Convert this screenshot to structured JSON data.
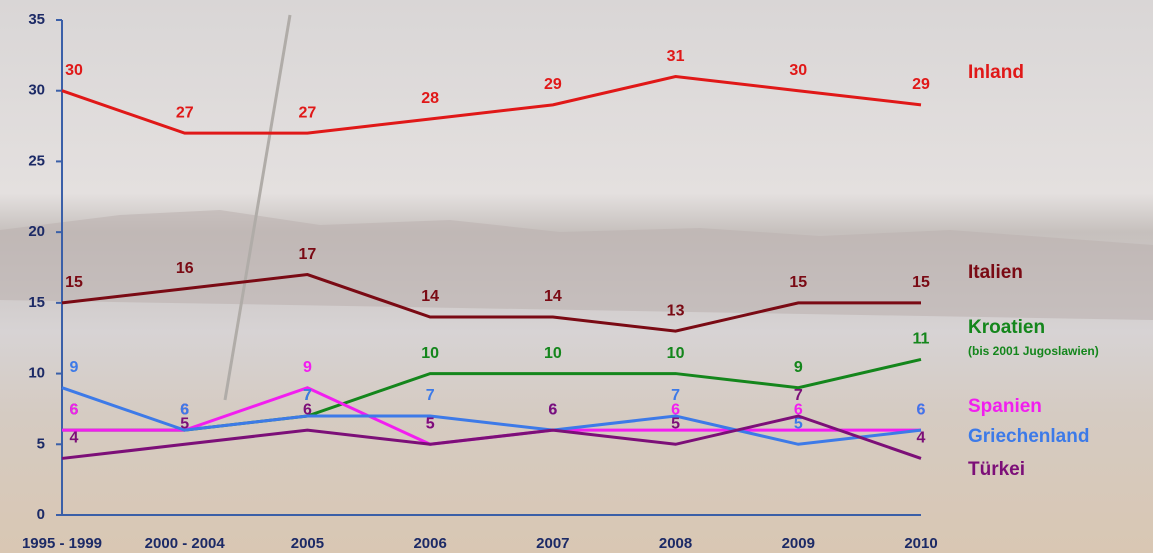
{
  "chart_data": {
    "type": "line",
    "categories": [
      "1995 - 1999",
      "2000 - 2004",
      "2005",
      "2006",
      "2007",
      "2008",
      "2009",
      "2010"
    ],
    "ylim": [
      0,
      35
    ],
    "yticks": [
      0,
      5,
      10,
      15,
      20,
      25,
      30,
      35
    ],
    "series": [
      {
        "name": "Inland",
        "color": "#e01818",
        "values": [
          30,
          27,
          27,
          28,
          29,
          31,
          30,
          29
        ]
      },
      {
        "name": "Italien",
        "color": "#7a0a14",
        "values": [
          15,
          16,
          17,
          14,
          14,
          13,
          15,
          15
        ]
      },
      {
        "name": "Kroatien",
        "note": "(bis 2001 Jugoslawien)",
        "color": "#14861c",
        "values": [
          6,
          6,
          7,
          10,
          10,
          10,
          9,
          11
        ]
      },
      {
        "name": "Spanien",
        "color": "#f21ef0",
        "values": [
          6,
          6,
          9,
          5,
          6,
          6,
          6,
          6
        ]
      },
      {
        "name": "Griechenland",
        "color": "#3d7ae8",
        "values": [
          9,
          6,
          7,
          7,
          6,
          7,
          5,
          6
        ]
      },
      {
        "name": "Türkei",
        "color": "#7c0f78",
        "values": [
          4,
          5,
          6,
          5,
          6,
          5,
          7,
          4
        ]
      }
    ]
  }
}
